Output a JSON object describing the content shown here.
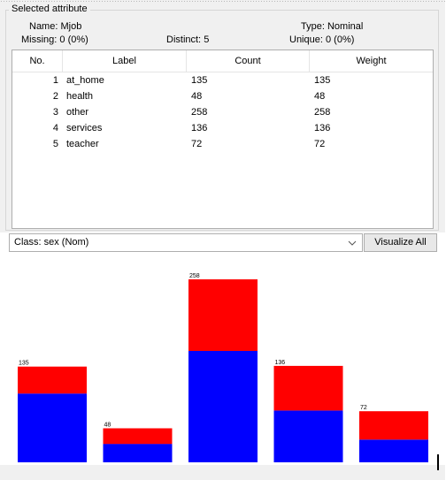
{
  "attribute": {
    "group_title": "Selected attribute",
    "name_label": "Name:",
    "name_value": "Mjob",
    "type_label": "Type:",
    "type_value": "Nominal",
    "missing_label": "Missing:",
    "missing_value": "0 (0%)",
    "distinct_label": "Distinct:",
    "distinct_value": "5",
    "unique_label": "Unique:",
    "unique_value": "0 (0%)"
  },
  "table": {
    "columns": [
      "No.",
      "Label",
      "Count",
      "Weight"
    ],
    "rows": [
      {
        "no": "1",
        "label": "at_home",
        "count": "135",
        "weight": "135"
      },
      {
        "no": "2",
        "label": "health",
        "count": "48",
        "weight": "48"
      },
      {
        "no": "3",
        "label": "other",
        "count": "258",
        "weight": "258"
      },
      {
        "no": "4",
        "label": "services",
        "count": "136",
        "weight": "136"
      },
      {
        "no": "5",
        "label": "teacher",
        "count": "72",
        "weight": "72"
      }
    ]
  },
  "class_selector": {
    "value": "Class: sex (Nom)",
    "visualize_all_label": "Visualize All"
  },
  "chart_data": {
    "type": "bar",
    "stacked": true,
    "categories": [
      "at_home",
      "health",
      "other",
      "services",
      "teacher"
    ],
    "totals": [
      135,
      48,
      258,
      136,
      72
    ],
    "value_labels": [
      "135",
      "48",
      "258",
      "136",
      "72"
    ],
    "series": [
      {
        "color": "#0000ff",
        "values": [
          97,
          26,
          157,
          73,
          32
        ]
      },
      {
        "color": "#ff0000",
        "values": [
          38,
          22,
          101,
          63,
          40
        ]
      }
    ],
    "ylim": [
      0,
      258
    ]
  }
}
